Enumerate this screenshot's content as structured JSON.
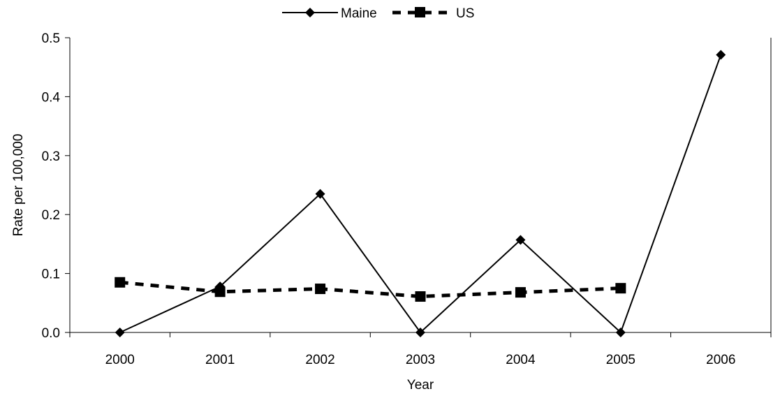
{
  "chart_data": {
    "type": "line",
    "title": "",
    "xlabel": "Year",
    "ylabel": "Rate per 100,000",
    "categories": [
      "2000",
      "2001",
      "2002",
      "2003",
      "2004",
      "2005",
      "2006"
    ],
    "y_ticks": [
      "0.0",
      "0.1",
      "0.2",
      "0.3",
      "0.4",
      "0.5"
    ],
    "ylim": [
      0,
      0.5
    ],
    "grid": false,
    "legend_position": "top-center",
    "series": [
      {
        "name": "Maine",
        "marker": "diamond",
        "line_style": "solid",
        "color": "#000000",
        "values": [
          0.0,
          0.078,
          0.235,
          0.0,
          0.157,
          0.0,
          0.471
        ]
      },
      {
        "name": "US",
        "marker": "square",
        "line_style": "dashed",
        "color": "#000000",
        "values": [
          0.085,
          0.069,
          0.074,
          0.061,
          0.068,
          0.075,
          null
        ]
      }
    ]
  }
}
